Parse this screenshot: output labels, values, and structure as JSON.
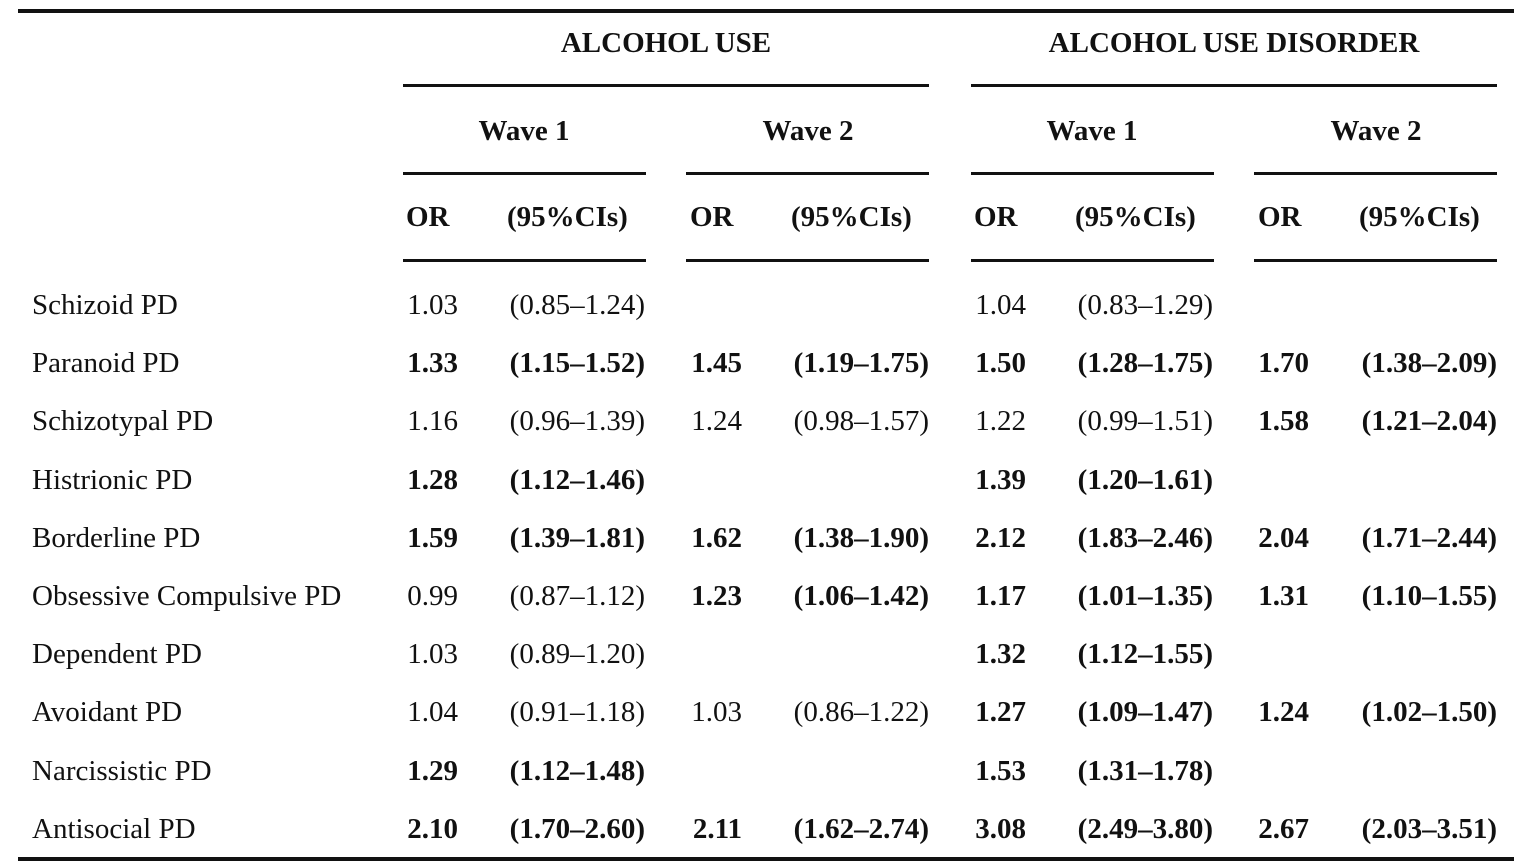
{
  "header": {
    "groups": [
      "ALCOHOL USE",
      "ALCOHOL USE DISORDER"
    ],
    "waves": [
      "Wave 1",
      "Wave 2",
      "Wave 1",
      "Wave 2"
    ],
    "or_label": "OR",
    "ci_label": "(95%CIs)"
  },
  "rows": [
    {
      "label": "Schizoid PD",
      "cells": [
        {
          "or": "1.03",
          "ci": "(0.85–1.24)",
          "bold": false
        },
        {
          "or": "",
          "ci": "",
          "bold": false
        },
        {
          "or": "1.04",
          "ci": "(0.83–1.29)",
          "bold": false
        },
        {
          "or": "",
          "ci": "",
          "bold": false
        }
      ]
    },
    {
      "label": "Paranoid PD",
      "cells": [
        {
          "or": "1.33",
          "ci": "(1.15–1.52)",
          "bold": true
        },
        {
          "or": "1.45",
          "ci": "(1.19–1.75)",
          "bold": true
        },
        {
          "or": "1.50",
          "ci": "(1.28–1.75)",
          "bold": true
        },
        {
          "or": "1.70",
          "ci": "(1.38–2.09)",
          "bold": true
        }
      ]
    },
    {
      "label": "Schizotypal PD",
      "cells": [
        {
          "or": "1.16",
          "ci": "(0.96–1.39)",
          "bold": false
        },
        {
          "or": "1.24",
          "ci": "(0.98–1.57)",
          "bold": false
        },
        {
          "or": "1.22",
          "ci": "(0.99–1.51)",
          "bold": false
        },
        {
          "or": "1.58",
          "ci": "(1.21–2.04)",
          "bold": true
        }
      ]
    },
    {
      "label": "Histrionic PD",
      "cells": [
        {
          "or": "1.28",
          "ci": "(1.12–1.46)",
          "bold": true
        },
        {
          "or": "",
          "ci": "",
          "bold": false
        },
        {
          "or": "1.39",
          "ci": "(1.20–1.61)",
          "bold": true
        },
        {
          "or": "",
          "ci": "",
          "bold": false
        }
      ]
    },
    {
      "label": "Borderline PD",
      "cells": [
        {
          "or": "1.59",
          "ci": "(1.39–1.81)",
          "bold": true
        },
        {
          "or": "1.62",
          "ci": "(1.38–1.90)",
          "bold": true
        },
        {
          "or": "2.12",
          "ci": "(1.83–2.46)",
          "bold": true
        },
        {
          "or": "2.04",
          "ci": "(1.71–2.44)",
          "bold": true
        }
      ]
    },
    {
      "label": "Obsessive Compulsive PD",
      "cells": [
        {
          "or": "0.99",
          "ci": "(0.87–1.12)",
          "bold": false
        },
        {
          "or": "1.23",
          "ci": "(1.06–1.42)",
          "bold": true
        },
        {
          "or": "1.17",
          "ci": "(1.01–1.35)",
          "bold": true
        },
        {
          "or": "1.31",
          "ci": "(1.10–1.55)",
          "bold": true
        }
      ]
    },
    {
      "label": "Dependent PD",
      "cells": [
        {
          "or": "1.03",
          "ci": "(0.89–1.20)",
          "bold": false
        },
        {
          "or": "",
          "ci": "",
          "bold": false
        },
        {
          "or": "1.32",
          "ci": "(1.12–1.55)",
          "bold": true
        },
        {
          "or": "",
          "ci": "",
          "bold": false
        }
      ]
    },
    {
      "label": "Avoidant PD",
      "cells": [
        {
          "or": "1.04",
          "ci": "(0.91–1.18)",
          "bold": false
        },
        {
          "or": "1.03",
          "ci": "(0.86–1.22)",
          "bold": false
        },
        {
          "or": "1.27",
          "ci": "(1.09–1.47)",
          "bold": true
        },
        {
          "or": "1.24",
          "ci": "(1.02–1.50)",
          "bold": true
        }
      ]
    },
    {
      "label": "Narcissistic PD",
      "cells": [
        {
          "or": "1.29",
          "ci": "(1.12–1.48)",
          "bold": true
        },
        {
          "or": "",
          "ci": "",
          "bold": false
        },
        {
          "or": "1.53",
          "ci": "(1.31–1.78)",
          "bold": true
        },
        {
          "or": "",
          "ci": "",
          "bold": false
        }
      ]
    },
    {
      "label": "Antisocial PD",
      "cells": [
        {
          "or": "2.10",
          "ci": "(1.70–2.60)",
          "bold": true
        },
        {
          "or": "2.11",
          "ci": "(1.62–2.74)",
          "bold": true
        },
        {
          "or": "3.08",
          "ci": "(2.49–3.80)",
          "bold": true
        },
        {
          "or": "2.67",
          "ci": "(2.03–3.51)",
          "bold": true
        }
      ]
    }
  ]
}
